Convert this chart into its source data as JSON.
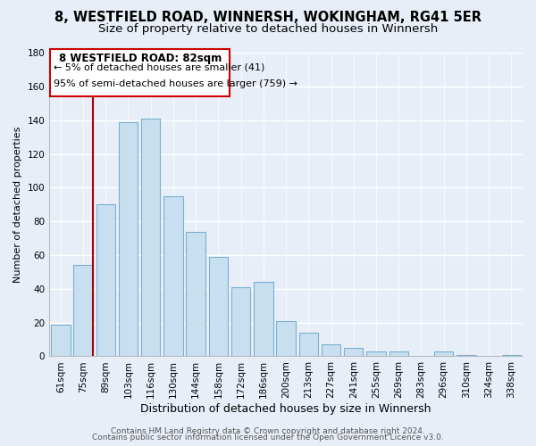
{
  "title": "8, WESTFIELD ROAD, WINNERSH, WOKINGHAM, RG41 5ER",
  "subtitle": "Size of property relative to detached houses in Winnersh",
  "xlabel": "Distribution of detached houses by size in Winnersh",
  "ylabel": "Number of detached properties",
  "bar_labels": [
    "61sqm",
    "75sqm",
    "89sqm",
    "103sqm",
    "116sqm",
    "130sqm",
    "144sqm",
    "158sqm",
    "172sqm",
    "186sqm",
    "200sqm",
    "213sqm",
    "227sqm",
    "241sqm",
    "255sqm",
    "269sqm",
    "283sqm",
    "296sqm",
    "310sqm",
    "324sqm",
    "338sqm"
  ],
  "bar_values": [
    19,
    54,
    90,
    139,
    141,
    95,
    74,
    59,
    41,
    44,
    21,
    14,
    7,
    5,
    3,
    3,
    0,
    3,
    1,
    0,
    1
  ],
  "bar_color": "#c8dff0",
  "bar_edge_color": "#7ab0d0",
  "ylim": [
    0,
    180
  ],
  "yticks": [
    0,
    20,
    40,
    60,
    80,
    100,
    120,
    140,
    160,
    180
  ],
  "vline_x_idx": 1,
  "vline_color": "#aa0000",
  "annotation_title": "8 WESTFIELD ROAD: 82sqm",
  "annotation_line1": "← 5% of detached houses are smaller (41)",
  "annotation_line2": "95% of semi-detached houses are larger (759) →",
  "annotation_box_color": "#ffffff",
  "annotation_box_edge": "#cc0000",
  "footer_line1": "Contains HM Land Registry data © Crown copyright and database right 2024.",
  "footer_line2": "Contains public sector information licensed under the Open Government Licence v3.0.",
  "bg_color": "#e8eef8",
  "grid_color": "#ffffff",
  "title_fontsize": 10.5,
  "subtitle_fontsize": 9.5,
  "xlabel_fontsize": 9,
  "ylabel_fontsize": 8,
  "tick_fontsize": 7.5,
  "footer_fontsize": 6.5
}
